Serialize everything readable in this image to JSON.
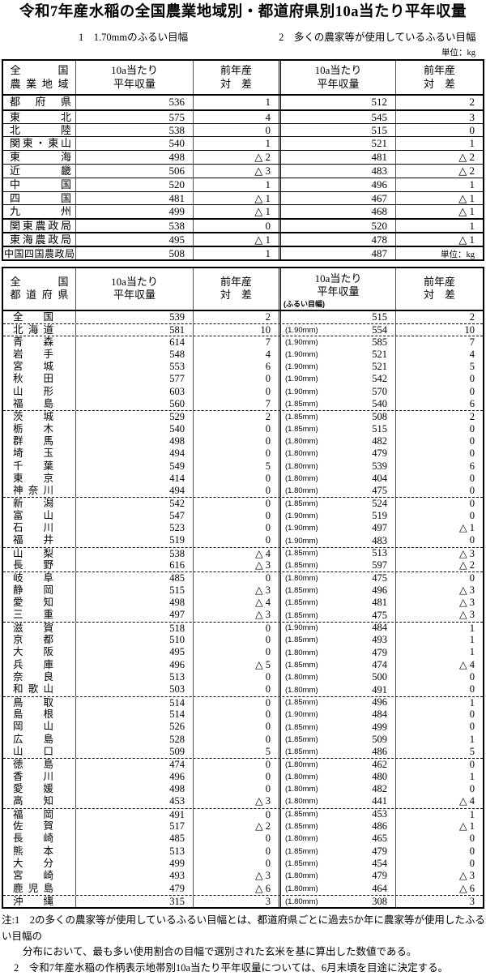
{
  "page": {
    "title": "令和7年産水稲の全国農業地域別・都道府県別10a当たり平年収量",
    "legend1": "1　1.70mmのふるい目幅",
    "legend2": "2　多くの農家等が使用しているふるい目幅",
    "unit_top": "単位：kg"
  },
  "table1": {
    "header": {
      "name1": "全国",
      "name2": "農業地域",
      "yield1": "10a当たり",
      "yield2": "平年収量",
      "diff1": "前年産",
      "diff2": "対　差"
    },
    "rows": [
      {
        "name": "都府県",
        "y1": "536",
        "d1": "1",
        "y2": "512",
        "d2": "2"
      },
      {
        "name": "東北",
        "y1": "575",
        "d1": "4",
        "y2": "545",
        "d2": "3",
        "cls": "thick"
      },
      {
        "name": "北陸",
        "y1": "538",
        "d1": "0",
        "y2": "515",
        "d2": "0"
      },
      {
        "name": "関東・東山",
        "y1": "540",
        "d1": "1",
        "y2": "521",
        "d2": "1"
      },
      {
        "name": "東海",
        "y1": "498",
        "d1": "△ 2",
        "y2": "481",
        "d2": "△ 2"
      },
      {
        "name": "近畿",
        "y1": "506",
        "d1": "△ 3",
        "y2": "483",
        "d2": "△ 2"
      },
      {
        "name": "中国",
        "y1": "520",
        "d1": "1",
        "y2": "496",
        "d2": "1"
      },
      {
        "name": "四国",
        "y1": "481",
        "d1": "△ 1",
        "y2": "467",
        "d2": "△ 1"
      },
      {
        "name": "九州",
        "y1": "499",
        "d1": "△ 1",
        "y2": "468",
        "d2": "△ 1"
      },
      {
        "name": "関東農政局",
        "y1": "538",
        "d1": "0",
        "y2": "520",
        "d2": "1",
        "cls": "thick"
      },
      {
        "name": "東海農政局",
        "y1": "495",
        "d1": "△ 1",
        "y2": "478",
        "d2": "△ 1",
        "cls": "thick"
      },
      {
        "name": "中国四国農政局",
        "y1": "508",
        "d1": "1",
        "y2": "487",
        "d2": "",
        "unit": "単位：kg",
        "cls": "thick wide"
      }
    ]
  },
  "table2": {
    "header": {
      "name1": "全国",
      "name2": "都道府県",
      "yield1": "10a当たり",
      "yield2": "平年収量",
      "diff1": "前年産",
      "diff2": "対　差",
      "sieve_note": "(ふるい目幅)"
    },
    "rows": [
      {
        "name": "全国",
        "y1": "539",
        "d1": "2",
        "mm": "",
        "y2": "515",
        "d2": "2"
      },
      {
        "name": "北海道",
        "y1": "581",
        "d1": "10",
        "mm": "(1.90mm)",
        "y2": "554",
        "d2": "10",
        "cls": "group"
      },
      {
        "name": "青森",
        "y1": "614",
        "d1": "7",
        "mm": "(1.90mm)",
        "y2": "585",
        "d2": "7",
        "cls": "group"
      },
      {
        "name": "岩手",
        "y1": "548",
        "d1": "4",
        "mm": "(1.90mm)",
        "y2": "521",
        "d2": "4"
      },
      {
        "name": "宮城",
        "y1": "553",
        "d1": "6",
        "mm": "(1.90mm)",
        "y2": "521",
        "d2": "5"
      },
      {
        "name": "秋田",
        "y1": "577",
        "d1": "0",
        "mm": "(1.90mm)",
        "y2": "542",
        "d2": "0"
      },
      {
        "name": "山形",
        "y1": "603",
        "d1": "0",
        "mm": "(1.90mm)",
        "y2": "570",
        "d2": "0"
      },
      {
        "name": "福島",
        "y1": "560",
        "d1": "7",
        "mm": "(1.85mm)",
        "y2": "540",
        "d2": "6"
      },
      {
        "name": "茨城",
        "y1": "529",
        "d1": "2",
        "mm": "(1.85mm)",
        "y2": "508",
        "d2": "2",
        "cls": "group"
      },
      {
        "name": "栃木",
        "y1": "540",
        "d1": "0",
        "mm": "(1.85mm)",
        "y2": "515",
        "d2": "0"
      },
      {
        "name": "群馬",
        "y1": "498",
        "d1": "0",
        "mm": "(1.80mm)",
        "y2": "482",
        "d2": "0"
      },
      {
        "name": "埼玉",
        "y1": "494",
        "d1": "0",
        "mm": "(1.80mm)",
        "y2": "479",
        "d2": "0"
      },
      {
        "name": "千葉",
        "y1": "549",
        "d1": "5",
        "mm": "(1.80mm)",
        "y2": "539",
        "d2": "6"
      },
      {
        "name": "東京",
        "y1": "414",
        "d1": "0",
        "mm": "(1.80mm)",
        "y2": "404",
        "d2": "0"
      },
      {
        "name": "神奈川",
        "y1": "494",
        "d1": "0",
        "mm": "(1.80mm)",
        "y2": "475",
        "d2": "0"
      },
      {
        "name": "新潟",
        "y1": "542",
        "d1": "0",
        "mm": "(1.85mm)",
        "y2": "524",
        "d2": "0",
        "cls": "group"
      },
      {
        "name": "富山",
        "y1": "547",
        "d1": "0",
        "mm": "(1.90mm)",
        "y2": "519",
        "d2": "0"
      },
      {
        "name": "石川",
        "y1": "523",
        "d1": "0",
        "mm": "(1.90mm)",
        "y2": "497",
        "d2": "△ 1"
      },
      {
        "name": "福井",
        "y1": "519",
        "d1": "0",
        "mm": "(1.90mm)",
        "y2": "483",
        "d2": "0"
      },
      {
        "name": "山梨",
        "y1": "538",
        "d1": "△ 4",
        "mm": "(1.85mm)",
        "y2": "513",
        "d2": "△ 3",
        "cls": "group"
      },
      {
        "name": "長野",
        "y1": "616",
        "d1": "△ 3",
        "mm": "(1.85mm)",
        "y2": "597",
        "d2": "△ 2"
      },
      {
        "name": "岐阜",
        "y1": "485",
        "d1": "0",
        "mm": "(1.80mm)",
        "y2": "475",
        "d2": "0",
        "cls": "group"
      },
      {
        "name": "静岡",
        "y1": "515",
        "d1": "△ 3",
        "mm": "(1.85mm)",
        "y2": "496",
        "d2": "△ 3"
      },
      {
        "name": "愛知",
        "y1": "498",
        "d1": "△ 4",
        "mm": "(1.85mm)",
        "y2": "481",
        "d2": "△ 3"
      },
      {
        "name": "三重",
        "y1": "497",
        "d1": "△ 3",
        "mm": "(1.85mm)",
        "y2": "475",
        "d2": "△ 3"
      },
      {
        "name": "滋賀",
        "y1": "518",
        "d1": "0",
        "mm": "(1.90mm)",
        "y2": "484",
        "d2": "1",
        "cls": "group"
      },
      {
        "name": "京都",
        "y1": "510",
        "d1": "0",
        "mm": "(1.85mm)",
        "y2": "493",
        "d2": "1"
      },
      {
        "name": "大阪",
        "y1": "495",
        "d1": "0",
        "mm": "(1.80mm)",
        "y2": "479",
        "d2": "1"
      },
      {
        "name": "兵庫",
        "y1": "496",
        "d1": "△ 5",
        "mm": "(1.85mm)",
        "y2": "474",
        "d2": "△ 4"
      },
      {
        "name": "奈良",
        "y1": "513",
        "d1": "0",
        "mm": "(1.80mm)",
        "y2": "500",
        "d2": "0"
      },
      {
        "name": "和歌山",
        "y1": "503",
        "d1": "0",
        "mm": "(1.80mm)",
        "y2": "491",
        "d2": "0"
      },
      {
        "name": "鳥取",
        "y1": "514",
        "d1": "0",
        "mm": "(1.85mm)",
        "y2": "496",
        "d2": "1",
        "cls": "group"
      },
      {
        "name": "島根",
        "y1": "514",
        "d1": "0",
        "mm": "(1.90mm)",
        "y2": "484",
        "d2": "0"
      },
      {
        "name": "岡山",
        "y1": "526",
        "d1": "0",
        "mm": "(1.85mm)",
        "y2": "499",
        "d2": "0"
      },
      {
        "name": "広島",
        "y1": "528",
        "d1": "0",
        "mm": "(1.85mm)",
        "y2": "509",
        "d2": "1"
      },
      {
        "name": "山口",
        "y1": "509",
        "d1": "5",
        "mm": "(1.85mm)",
        "y2": "486",
        "d2": "5"
      },
      {
        "name": "徳島",
        "y1": "474",
        "d1": "0",
        "mm": "(1.80mm)",
        "y2": "462",
        "d2": "0",
        "cls": "group"
      },
      {
        "name": "香川",
        "y1": "496",
        "d1": "0",
        "mm": "(1.80mm)",
        "y2": "480",
        "d2": "1"
      },
      {
        "name": "愛媛",
        "y1": "498",
        "d1": "0",
        "mm": "(1.80mm)",
        "y2": "482",
        "d2": "0"
      },
      {
        "name": "高知",
        "y1": "453",
        "d1": "△ 3",
        "mm": "(1.80mm)",
        "y2": "441",
        "d2": "△ 4"
      },
      {
        "name": "福岡",
        "y1": "491",
        "d1": "0",
        "mm": "(1.85mm)",
        "y2": "453",
        "d2": "1",
        "cls": "group"
      },
      {
        "name": "佐賀",
        "y1": "517",
        "d1": "△ 2",
        "mm": "(1.85mm)",
        "y2": "486",
        "d2": "△ 1"
      },
      {
        "name": "長崎",
        "y1": "485",
        "d1": "0",
        "mm": "(1.80mm)",
        "y2": "465",
        "d2": "0"
      },
      {
        "name": "熊本",
        "y1": "513",
        "d1": "0",
        "mm": "(1.85mm)",
        "y2": "479",
        "d2": "0"
      },
      {
        "name": "大分",
        "y1": "499",
        "d1": "0",
        "mm": "(1.85mm)",
        "y2": "454",
        "d2": "0"
      },
      {
        "name": "宮崎",
        "y1": "493",
        "d1": "△ 3",
        "mm": "(1.80mm)",
        "y2": "479",
        "d2": "△ 3"
      },
      {
        "name": "鹿児島",
        "y1": "479",
        "d1": "△ 6",
        "mm": "(1.80mm)",
        "y2": "464",
        "d2": "△ 6"
      },
      {
        "name": "沖縄",
        "y1": "315",
        "d1": "3",
        "mm": "(1.80mm)",
        "y2": "308",
        "d2": "3",
        "cls": "group"
      }
    ]
  },
  "notes": {
    "line1": "注:1　2の多くの農家等が使用しているふるい目幅とは、都道府県ごとに過去5か年に農家等が使用したふるい目幅の",
    "line2": "分布において、最も多い使用割合の目幅で選別された玄米を基に算出した数値である。",
    "line3": "2　令和7年産水稲の作柄表示地帯別10a当たり平年収量については、6月末頃を目途に決定する。"
  }
}
